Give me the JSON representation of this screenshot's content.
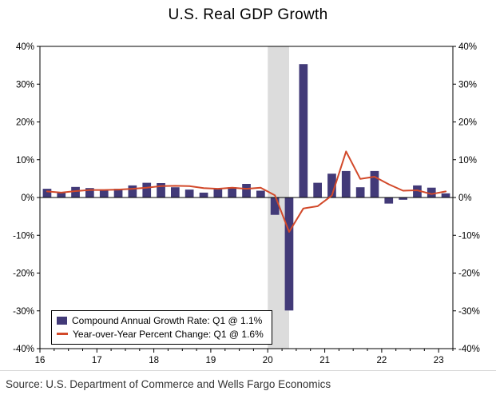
{
  "title": "U.S. Real GDP Growth",
  "source": "Source: U.S. Department of Commerce and Wells Fargo Economics",
  "colors": {
    "bar": "#423a78",
    "line": "#d2492a",
    "recession_band": "#dcdcdc",
    "axis": "#000000"
  },
  "chart_data": {
    "type": "bar",
    "title": "U.S. Real GDP Growth",
    "x_unit": "quarter",
    "x_start": "2016Q1",
    "x_end": "2023Q1",
    "x_tick_labels": [
      "16",
      "17",
      "18",
      "19",
      "20",
      "21",
      "22",
      "23"
    ],
    "quarters_per_x_tick": 4,
    "ylim": [
      -40,
      40
    ],
    "y_ticks": [
      -40,
      -30,
      -20,
      -10,
      0,
      10,
      20,
      30,
      40
    ],
    "y_tick_labels": [
      "-40%",
      "-30%",
      "-20%",
      "-10%",
      "0%",
      "10%",
      "20%",
      "30%",
      "40%"
    ],
    "dual_axis": true,
    "grid": false,
    "legend_position": "bottom-left",
    "recession_band": {
      "start_quarter": 16,
      "end_quarter": 17.5
    },
    "series": [
      {
        "name": "Compound Annual Growth Rate: Q1 @ 1.1%",
        "type": "bar",
        "color": "#423a78",
        "values": [
          2.3,
          1.3,
          2.8,
          2.5,
          1.8,
          2.3,
          3.2,
          3.9,
          3.8,
          2.7,
          2.1,
          1.3,
          2.2,
          2.7,
          3.6,
          1.8,
          -4.6,
          -29.9,
          35.3,
          3.9,
          6.3,
          7.0,
          2.7,
          7.0,
          -1.6,
          -0.6,
          3.2,
          2.6,
          1.1
        ]
      },
      {
        "name": "Year-over-Year Percent Change: Q1 @ 1.6%",
        "type": "line",
        "color": "#d2492a",
        "values": [
          1.6,
          1.3,
          1.7,
          2.0,
          2.0,
          2.1,
          2.3,
          2.6,
          3.0,
          3.1,
          3.0,
          2.5,
          2.3,
          2.6,
          2.3,
          2.6,
          0.6,
          -9.1,
          -2.9,
          -2.3,
          0.5,
          12.2,
          4.9,
          5.5,
          3.5,
          1.8,
          1.9,
          0.9,
          1.6
        ]
      }
    ]
  }
}
